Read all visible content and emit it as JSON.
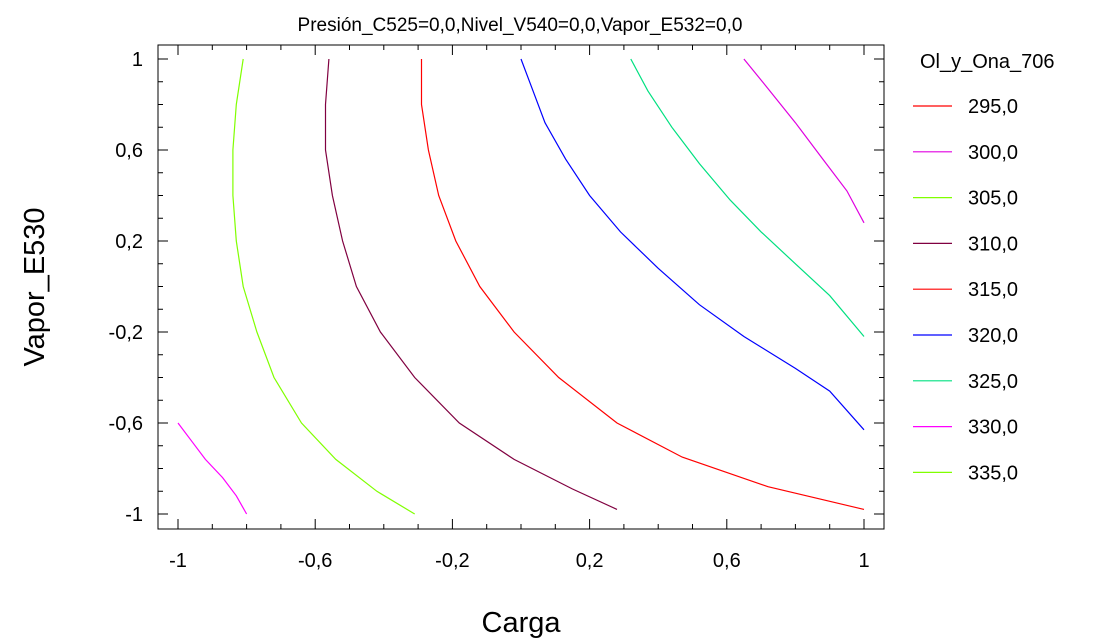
{
  "chart_data": {
    "type": "line",
    "title": "Presión_C525=0,0,Nivel_V540=0,0,Vapor_E532=0,0",
    "xlabel": "Carga",
    "ylabel": "Vapor_E530",
    "xlim": [
      -1,
      1
    ],
    "ylim": [
      -1,
      1
    ],
    "x_ticks": [
      -1,
      -0.6,
      -0.2,
      0.2,
      0.6,
      1
    ],
    "y_ticks": [
      -1,
      -0.6,
      -0.2,
      0.2,
      0.6,
      1
    ],
    "x_tick_labels": [
      "-1",
      "-0,6",
      "-0,2",
      "0,2",
      "0,6",
      "1"
    ],
    "y_tick_labels": [
      "-1",
      "-0,6",
      "-0,2",
      "0,2",
      "0,6",
      "1"
    ],
    "grid": false,
    "legend_title": "Ol_y_Ona_706",
    "legend_position": "right",
    "series": [
      {
        "name": "295,0",
        "color": "#ff0000",
        "points": []
      },
      {
        "name": "300,0",
        "color": "#e000e0",
        "points": [
          [
            0.65,
            1.0
          ],
          [
            0.72,
            0.87
          ],
          [
            0.8,
            0.72
          ],
          [
            0.88,
            0.56
          ],
          [
            0.95,
            0.42
          ],
          [
            1.0,
            0.28
          ]
        ]
      },
      {
        "name": "305,0",
        "color": "#80ff00",
        "points": []
      },
      {
        "name": "310,0",
        "color": "#800040",
        "points": []
      },
      {
        "name": "315,0",
        "color": "#ff0000",
        "points": [
          [
            -0.29,
            1.0
          ],
          [
            -0.29,
            0.8
          ],
          [
            -0.27,
            0.6
          ],
          [
            -0.24,
            0.4
          ],
          [
            -0.19,
            0.2
          ],
          [
            -0.12,
            0.0
          ],
          [
            -0.02,
            -0.2
          ],
          [
            0.11,
            -0.4
          ],
          [
            0.28,
            -0.6
          ],
          [
            0.47,
            -0.75
          ],
          [
            0.72,
            -0.88
          ],
          [
            1.0,
            -0.98
          ]
        ]
      },
      {
        "name": "320,0",
        "color": "#0000ff",
        "points": [
          [
            0.0,
            1.0
          ],
          [
            0.03,
            0.88
          ],
          [
            0.07,
            0.72
          ],
          [
            0.13,
            0.56
          ],
          [
            0.2,
            0.4
          ],
          [
            0.29,
            0.24
          ],
          [
            0.4,
            0.08
          ],
          [
            0.52,
            -0.08
          ],
          [
            0.65,
            -0.22
          ],
          [
            0.8,
            -0.36
          ],
          [
            0.9,
            -0.46
          ],
          [
            1.0,
            -0.63
          ]
        ]
      },
      {
        "name": "325,0",
        "color": "#00e080",
        "points": [
          [
            0.32,
            1.0
          ],
          [
            0.37,
            0.86
          ],
          [
            0.44,
            0.7
          ],
          [
            0.52,
            0.54
          ],
          [
            0.61,
            0.38
          ],
          [
            0.7,
            0.24
          ],
          [
            0.8,
            0.1
          ],
          [
            0.9,
            -0.04
          ],
          [
            1.0,
            -0.22
          ]
        ]
      },
      {
        "name": "330,0",
        "color": "#ff00ff",
        "points": [
          [
            -1.0,
            -0.6
          ],
          [
            -0.96,
            -0.68
          ],
          [
            -0.92,
            -0.76
          ],
          [
            -0.87,
            -0.84
          ],
          [
            -0.83,
            -0.92
          ],
          [
            -0.8,
            -1.0
          ]
        ]
      },
      {
        "name": "335,0",
        "color": "#80ff00",
        "points": [
          [
            -0.81,
            1.0
          ],
          [
            -0.83,
            0.8
          ],
          [
            -0.84,
            0.6
          ],
          [
            -0.84,
            0.4
          ],
          [
            -0.83,
            0.2
          ],
          [
            -0.81,
            0.0
          ],
          [
            -0.77,
            -0.2
          ],
          [
            -0.72,
            -0.4
          ],
          [
            -0.64,
            -0.6
          ],
          [
            -0.54,
            -0.76
          ],
          [
            -0.42,
            -0.9
          ],
          [
            -0.31,
            -1.0
          ]
        ]
      }
    ],
    "extra_lines": [
      {
        "color": "#800040",
        "points": [
          [
            -0.56,
            1.0
          ],
          [
            -0.57,
            0.8
          ],
          [
            -0.57,
            0.6
          ],
          [
            -0.55,
            0.4
          ],
          [
            -0.52,
            0.2
          ],
          [
            -0.48,
            0.0
          ],
          [
            -0.41,
            -0.2
          ],
          [
            -0.31,
            -0.4
          ],
          [
            -0.18,
            -0.6
          ],
          [
            -0.02,
            -0.76
          ],
          [
            0.15,
            -0.89
          ],
          [
            0.28,
            -0.98
          ]
        ]
      }
    ]
  }
}
